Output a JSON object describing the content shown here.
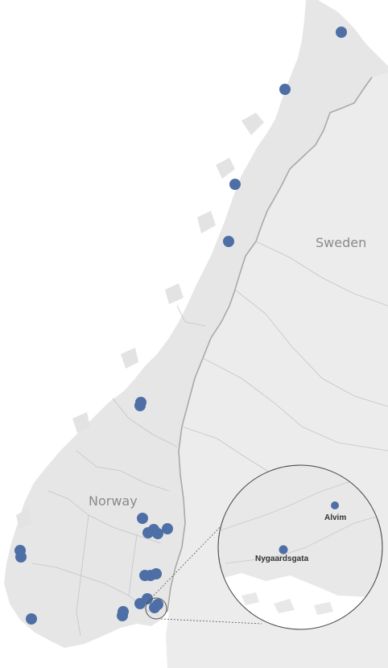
{
  "map": {
    "country_labels": {
      "sweden": "Sweden",
      "norway": "Norway"
    },
    "marker_color": "#4e6fa6",
    "land_color": "#e6e6e6",
    "border_color": "#b5b5b5",
    "inset": {
      "labels": {
        "alvim": "Alvim",
        "nygaardsgata": "Nygaardsgata"
      }
    }
  }
}
